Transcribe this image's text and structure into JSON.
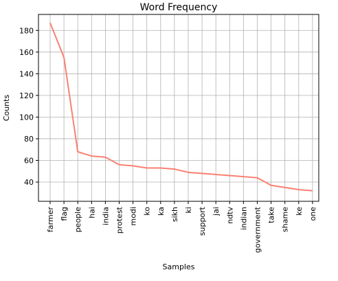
{
  "chart_data": {
    "type": "line",
    "title": "Word Frequency",
    "xlabel": "Samples",
    "ylabel": "Counts",
    "categories": [
      "farmer",
      "flag",
      "people",
      "hai",
      "india",
      "protest",
      "modi",
      "ko",
      "ka",
      "sikh",
      "ki",
      "support",
      "jai",
      "ndtv",
      "indian",
      "government",
      "take",
      "shame",
      "ke",
      "one"
    ],
    "values": [
      187,
      155,
      68,
      64,
      63,
      56,
      55,
      53,
      53,
      52,
      49,
      48,
      47,
      46,
      45,
      44,
      37,
      35,
      33,
      32
    ],
    "yticks": [
      40,
      60,
      80,
      100,
      120,
      140,
      160,
      180
    ],
    "ylim": [
      22.25,
      194.75
    ],
    "grid": true,
    "line_color": "#fa8072"
  }
}
